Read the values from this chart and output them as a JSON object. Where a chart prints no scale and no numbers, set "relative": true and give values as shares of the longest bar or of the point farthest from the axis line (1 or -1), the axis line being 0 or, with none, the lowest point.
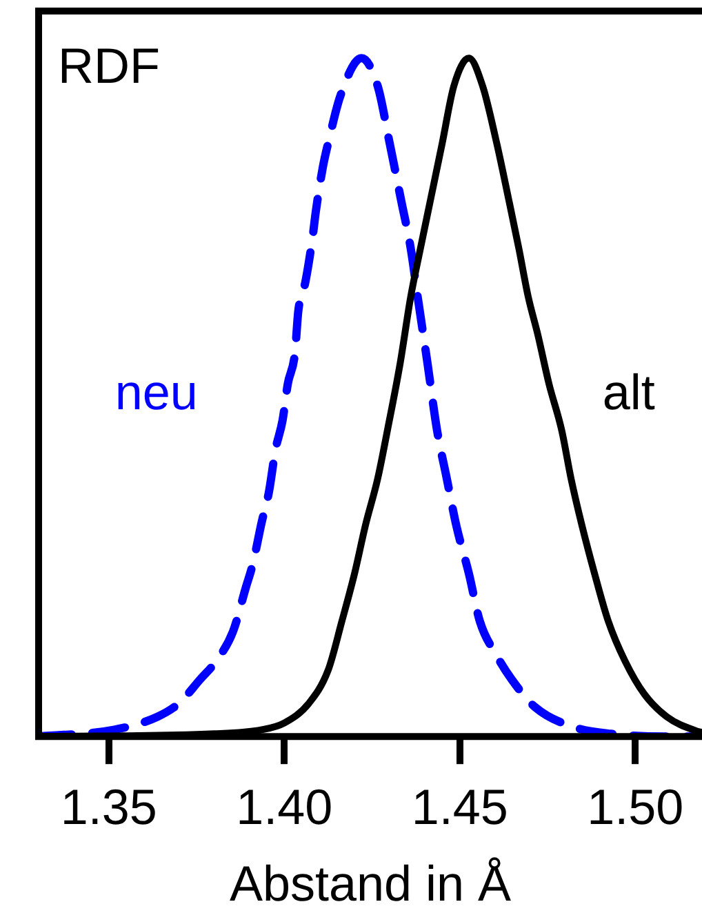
{
  "chart_data": {
    "type": "line",
    "relative": true,
    "ylabel": "RDF",
    "xlabel": "Abstand in Å",
    "xlim": [
      1.33,
      1.519
    ],
    "xticks": [
      {
        "value": 1.35,
        "label": "1.35"
      },
      {
        "value": 1.4,
        "label": "1.40"
      },
      {
        "value": 1.45,
        "label": "1.45"
      },
      {
        "value": 1.5,
        "label": "1.50"
      }
    ],
    "marker": "none",
    "legend": false,
    "grid": false,
    "series": [
      {
        "name": "neu",
        "color": "#0000ff",
        "line_style": "dashed",
        "x": [
          1.33,
          1.3516,
          1.3638,
          1.37,
          1.376,
          1.3807,
          1.3854,
          1.389,
          1.391,
          1.3936,
          1.3956,
          1.3975,
          1.3995,
          1.401,
          1.403,
          1.404,
          1.406,
          1.408,
          1.409,
          1.411,
          1.4125,
          1.416,
          1.422,
          1.4266,
          1.43,
          1.4333,
          1.436,
          1.438,
          1.4408,
          1.4435,
          1.4463,
          1.449,
          1.4526,
          1.4557,
          1.4604,
          1.4648,
          1.4715,
          1.4824,
          1.493,
          1.509,
          1.519
        ],
        "values": [
          0,
          0.01,
          0.029,
          0.049,
          0.084,
          0.112,
          0.155,
          0.219,
          0.254,
          0.317,
          0.36,
          0.423,
          0.466,
          0.52,
          0.564,
          0.628,
          0.67,
          0.734,
          0.775,
          0.84,
          0.875,
          0.945,
          1,
          0.959,
          0.875,
          0.79,
          0.72,
          0.648,
          0.55,
          0.452,
          0.38,
          0.311,
          0.24,
          0.17,
          0.12,
          0.084,
          0.043,
          0.014,
          0.004,
          0,
          0
        ]
      },
      {
        "name": "alt",
        "color": "#000000",
        "line_style": "solid",
        "x": [
          1.33,
          1.38,
          1.3936,
          1.4,
          1.407,
          1.4125,
          1.4164,
          1.42,
          1.4231,
          1.4266,
          1.4294,
          1.433,
          1.436,
          1.4388,
          1.4416,
          1.445,
          1.4483,
          1.4526,
          1.4565,
          1.4605,
          1.464,
          1.4668,
          1.4695,
          1.4722,
          1.4754,
          1.479,
          1.4817,
          1.4848,
          1.4884,
          1.4923,
          1.497,
          1.5025,
          1.509,
          1.5175,
          1.519
        ],
        "values": [
          0,
          0.004,
          0.01,
          0.02,
          0.049,
          0.098,
          0.17,
          0.24,
          0.311,
          0.38,
          0.452,
          0.55,
          0.648,
          0.72,
          0.79,
          0.875,
          0.959,
          1,
          0.959,
          0.875,
          0.79,
          0.72,
          0.648,
          0.593,
          0.52,
          0.452,
          0.38,
          0.311,
          0.24,
          0.17,
          0.112,
          0.063,
          0.029,
          0.008,
          0.006
        ]
      }
    ]
  }
}
